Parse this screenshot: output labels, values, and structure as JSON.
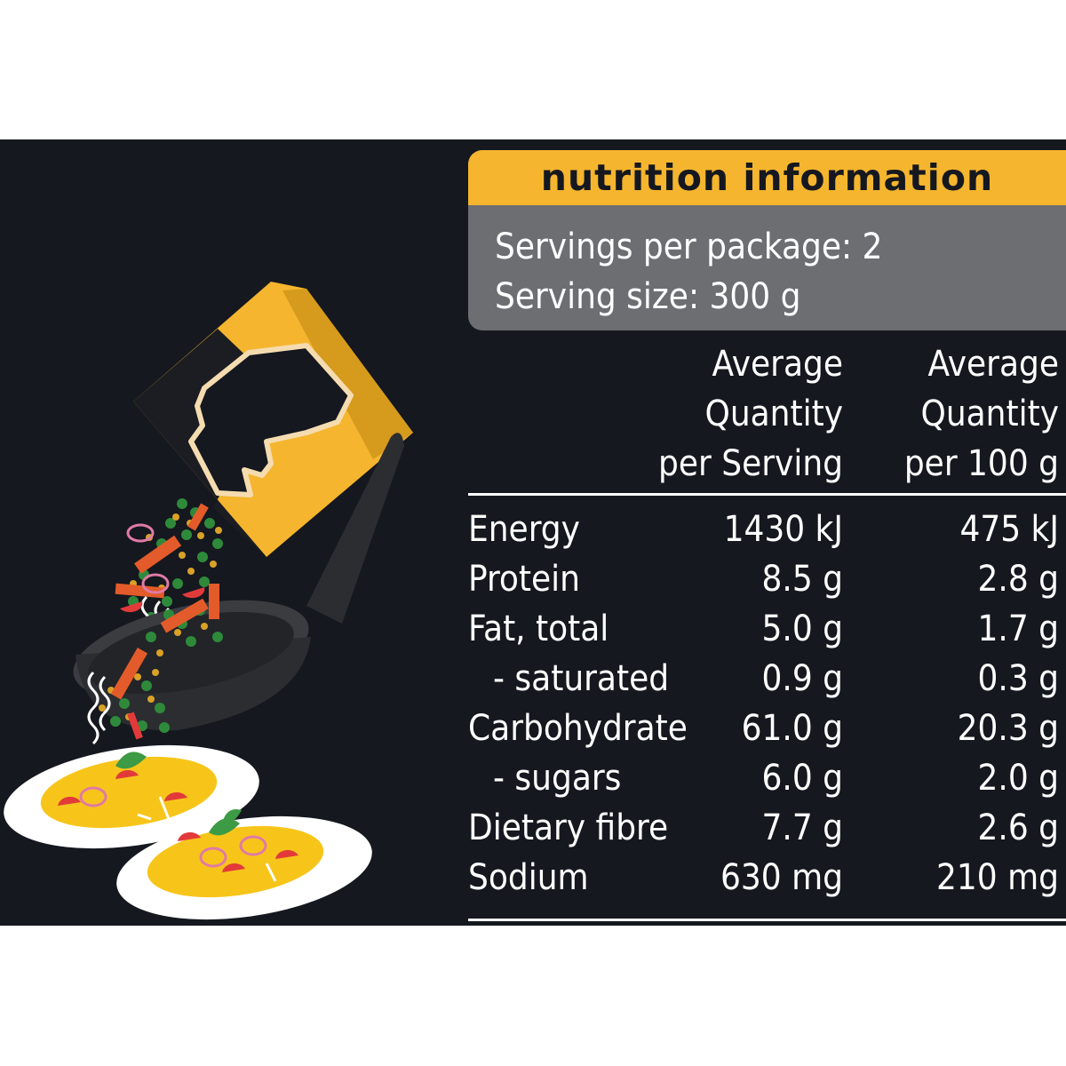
{
  "panel": {
    "title": "nutrition information",
    "servings_per_package": "Servings per package: 2",
    "serving_size": "Serving size: 300 g",
    "columns": [
      [
        "Average",
        "Quantity",
        "per Serving"
      ],
      [
        "Average",
        "Quantity",
        "per 100 g"
      ]
    ],
    "rows": [
      {
        "name": "Energy",
        "serving": "1430 kJ",
        "per100": "475 kJ"
      },
      {
        "name": "Protein",
        "serving": "8.5 g",
        "per100": "2.8 g"
      },
      {
        "name": "Fat, total",
        "serving": "5.0 g",
        "per100": "1.7 g"
      },
      {
        "name": "- saturated",
        "serving": "0.9 g",
        "per100": "0.3 g"
      },
      {
        "name": "Carbohydrate",
        "serving": "61.0 g",
        "per100": "20.3 g"
      },
      {
        "name": "- sugars",
        "serving": "6.0 g",
        "per100": "2.0 g"
      },
      {
        "name": "Dietary fibre",
        "serving": "7.7 g",
        "per100": "2.6 g"
      },
      {
        "name": "Sodium",
        "serving": "630 mg",
        "per100": "210 mg"
      }
    ]
  },
  "colors": {
    "background": "#15181f",
    "accent": "#f5b52e",
    "header_grey": "#6c6e72",
    "text": "#ffffff"
  }
}
